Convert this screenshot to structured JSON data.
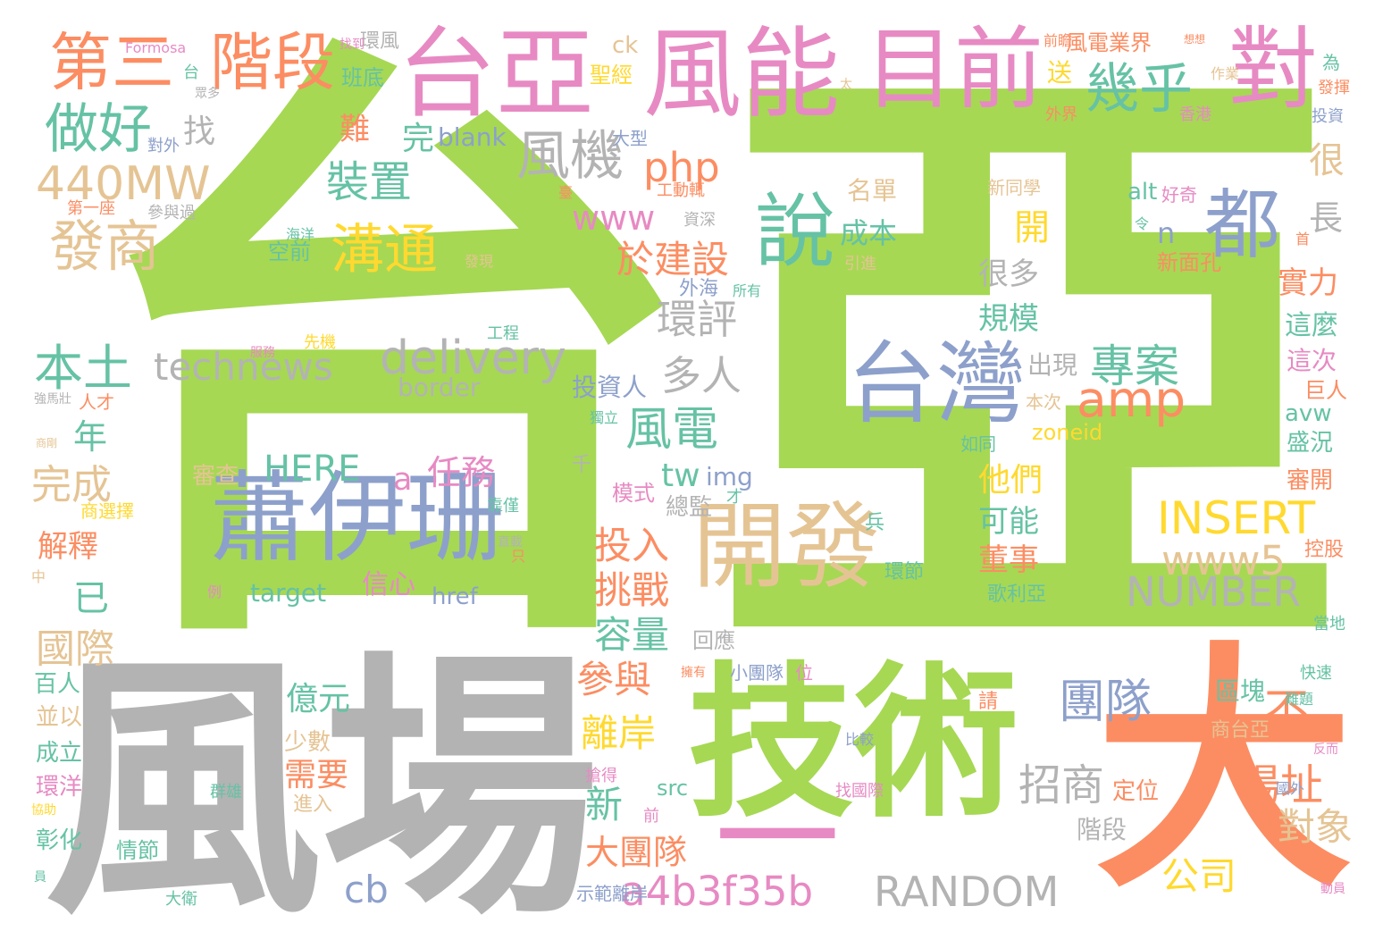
{
  "palette": {
    "green": "#a6d854",
    "pink": "#e78ac3",
    "orange": "#fc8d62",
    "blue": "#8da0cb",
    "tan": "#e5c494",
    "gray": "#b3b3b3",
    "yellow": "#ffd92f",
    "teal": "#66c2a5"
  },
  "words": [
    {
      "text": "台",
      "color": "green"
    },
    {
      "text": "亞",
      "color": "green"
    },
    {
      "text": "風場",
      "color": "gray"
    },
    {
      "text": "技術",
      "color": "green"
    },
    {
      "text": "大",
      "color": "orange"
    },
    {
      "text": "一",
      "color": "pink"
    },
    {
      "text": "台亞",
      "color": "pink"
    },
    {
      "text": "風能",
      "color": "pink"
    },
    {
      "text": "目前",
      "color": "pink"
    },
    {
      "text": "對",
      "color": "pink"
    },
    {
      "text": "蕭伊珊",
      "color": "blue"
    },
    {
      "text": "開發",
      "color": "tan"
    },
    {
      "text": "台灣",
      "color": "blue"
    },
    {
      "text": "說",
      "color": "teal"
    },
    {
      "text": "都",
      "color": "blue"
    },
    {
      "text": "第三",
      "color": "orange"
    },
    {
      "text": "階段",
      "color": "orange"
    },
    {
      "text": "幾乎",
      "color": "teal"
    },
    {
      "text": "做好",
      "color": "teal"
    },
    {
      "text": "風機",
      "color": "gray"
    },
    {
      "text": "440MW",
      "color": "tan"
    },
    {
      "text": "發商",
      "color": "tan"
    },
    {
      "text": "溝通",
      "color": "yellow"
    },
    {
      "text": "technews",
      "color": "gray"
    },
    {
      "text": "delivery",
      "color": "gray"
    },
    {
      "text": "border",
      "color": "gray"
    },
    {
      "text": "本土",
      "color": "teal"
    },
    {
      "text": "專案",
      "color": "teal"
    },
    {
      "text": "amp",
      "color": "orange"
    },
    {
      "text": "INSERT",
      "color": "yellow"
    },
    {
      "text": "www5",
      "color": "tan"
    },
    {
      "text": "NUMBER",
      "color": "gray"
    },
    {
      "text": "RANDOM",
      "color": "gray"
    },
    {
      "text": "a4b3f35b",
      "color": "pink"
    },
    {
      "text": "cb",
      "color": "blue"
    },
    {
      "text": "團隊",
      "color": "blue"
    },
    {
      "text": "不",
      "color": "orange"
    },
    {
      "text": "場址",
      "color": "orange"
    },
    {
      "text": "招商",
      "color": "gray"
    },
    {
      "text": "對象",
      "color": "tan"
    },
    {
      "text": "公司",
      "color": "yellow"
    },
    {
      "text": "風電",
      "color": "teal"
    },
    {
      "text": "裝置",
      "color": "teal"
    },
    {
      "text": "php",
      "color": "orange"
    },
    {
      "text": "www",
      "color": "pink"
    },
    {
      "text": "於建設",
      "color": "orange"
    },
    {
      "text": "環評",
      "color": "gray"
    },
    {
      "text": "多人",
      "color": "gray"
    },
    {
      "text": "HERE",
      "color": "teal"
    },
    {
      "text": "任務",
      "color": "pink"
    },
    {
      "text": "a",
      "color": "pink"
    },
    {
      "text": "tw",
      "color": "teal"
    },
    {
      "text": "img",
      "color": "blue"
    },
    {
      "text": "投入",
      "color": "orange"
    },
    {
      "text": "挑戰",
      "color": "orange"
    },
    {
      "text": "容量",
      "color": "teal"
    },
    {
      "text": "參與",
      "color": "orange"
    },
    {
      "text": "離岸",
      "color": "yellow"
    },
    {
      "text": "新",
      "color": "teal"
    },
    {
      "text": "大團隊",
      "color": "orange"
    },
    {
      "text": "億元",
      "color": "teal"
    },
    {
      "text": "需要",
      "color": "orange"
    },
    {
      "text": "年",
      "color": "teal"
    },
    {
      "text": "完成",
      "color": "tan"
    },
    {
      "text": "解釋",
      "color": "orange"
    },
    {
      "text": "已",
      "color": "teal"
    },
    {
      "text": "國際",
      "color": "tan"
    },
    {
      "text": "開",
      "color": "yellow"
    },
    {
      "text": "n",
      "color": "blue"
    },
    {
      "text": "成本",
      "color": "teal"
    },
    {
      "text": "很多",
      "color": "gray"
    },
    {
      "text": "規模",
      "color": "teal"
    },
    {
      "text": "出現",
      "color": "gray"
    },
    {
      "text": "他們",
      "color": "yellow"
    },
    {
      "text": "可能",
      "color": "teal"
    },
    {
      "text": "董事",
      "color": "orange"
    },
    {
      "text": "很",
      "color": "tan"
    },
    {
      "text": "長",
      "color": "gray"
    },
    {
      "text": "實力",
      "color": "orange"
    },
    {
      "text": "這麼",
      "color": "teal"
    },
    {
      "text": "這次",
      "color": "pink"
    },
    {
      "text": "巨人",
      "color": "orange"
    },
    {
      "text": "avw",
      "color": "teal"
    },
    {
      "text": "盛況",
      "color": "teal"
    },
    {
      "text": "審開",
      "color": "orange"
    },
    {
      "text": "控股",
      "color": "orange"
    },
    {
      "text": "找",
      "color": "gray"
    },
    {
      "text": "難",
      "color": "orange"
    },
    {
      "text": "完",
      "color": "teal"
    },
    {
      "text": "blank",
      "color": "blue"
    },
    {
      "text": "target",
      "color": "teal"
    },
    {
      "text": "信心",
      "color": "pink"
    },
    {
      "text": "href",
      "color": "blue"
    },
    {
      "text": "src",
      "color": "teal"
    },
    {
      "text": "zoneid",
      "color": "yellow"
    },
    {
      "text": "alt",
      "color": "teal"
    },
    {
      "text": "新面孔",
      "color": "orange"
    },
    {
      "text": "名單",
      "color": "tan"
    },
    {
      "text": "新同學",
      "color": "tan"
    },
    {
      "text": "空前",
      "color": "teal"
    },
    {
      "text": "班底",
      "color": "teal"
    },
    {
      "text": "聖經",
      "color": "yellow"
    },
    {
      "text": "ck",
      "color": "tan"
    },
    {
      "text": "送",
      "color": "yellow"
    },
    {
      "text": "風電業界",
      "color": "orange"
    },
    {
      "text": "外界",
      "color": "orange"
    },
    {
      "text": "投資",
      "color": "blue"
    },
    {
      "text": "為",
      "color": "teal"
    },
    {
      "text": "環風",
      "color": "gray"
    },
    {
      "text": "Formosa",
      "color": "pink"
    },
    {
      "text": "台",
      "color": "teal"
    },
    {
      "text": "第一座",
      "color": "orange"
    },
    {
      "text": "參與過",
      "color": "gray"
    },
    {
      "text": "外海",
      "color": "blue"
    },
    {
      "text": "歌利亞",
      "color": "teal"
    },
    {
      "text": "階段",
      "color": "gray"
    },
    {
      "text": "區塊",
      "color": "teal"
    },
    {
      "text": "請",
      "color": "orange"
    },
    {
      "text": "商台亞",
      "color": "tan"
    },
    {
      "text": "本次",
      "color": "tan"
    },
    {
      "text": "如同",
      "color": "teal"
    },
    {
      "text": "投資人",
      "color": "blue"
    },
    {
      "text": "總監",
      "color": "gray"
    },
    {
      "text": "審查",
      "color": "tan"
    },
    {
      "text": "靠僅",
      "color": "teal"
    },
    {
      "text": "百人",
      "color": "teal"
    },
    {
      "text": "並以",
      "color": "tan"
    },
    {
      "text": "成立",
      "color": "teal"
    },
    {
      "text": "環洋",
      "color": "pink"
    },
    {
      "text": "彰化",
      "color": "teal"
    },
    {
      "text": "情節",
      "color": "teal"
    },
    {
      "text": "進入",
      "color": "tan"
    },
    {
      "text": "少數",
      "color": "tan"
    },
    {
      "text": "大衛",
      "color": "teal"
    },
    {
      "text": "示範離岸",
      "color": "blue"
    },
    {
      "text": "搶得",
      "color": "pink"
    },
    {
      "text": "找國際",
      "color": "pink"
    },
    {
      "text": "定位",
      "color": "orange"
    },
    {
      "text": "位",
      "color": "pink"
    },
    {
      "text": "小團隊",
      "color": "blue"
    },
    {
      "text": "回應",
      "color": "gray"
    },
    {
      "text": "兵",
      "color": "teal"
    },
    {
      "text": "環節",
      "color": "teal"
    },
    {
      "text": "才",
      "color": "teal"
    },
    {
      "text": "模式",
      "color": "pink"
    },
    {
      "text": "千",
      "color": "gray"
    },
    {
      "text": "獨立",
      "color": "teal"
    },
    {
      "text": "資深",
      "color": "gray"
    },
    {
      "text": "工動輒",
      "color": "orange"
    },
    {
      "text": "大型",
      "color": "blue"
    },
    {
      "text": "好奇",
      "color": "pink"
    },
    {
      "text": "引進",
      "color": "tan"
    },
    {
      "text": "先機",
      "color": "yellow"
    },
    {
      "text": "人才",
      "color": "orange"
    },
    {
      "text": "強馬壯",
      "color": "gray"
    },
    {
      "text": "發現",
      "color": "tan"
    },
    {
      "text": "海洋",
      "color": "teal"
    },
    {
      "text": "工程",
      "color": "teal"
    },
    {
      "text": "所有",
      "color": "teal"
    },
    {
      "text": "對外",
      "color": "blue"
    },
    {
      "text": "眾多",
      "color": "gray"
    },
    {
      "text": "擁有",
      "color": "orange"
    },
    {
      "text": "比較",
      "color": "blue"
    },
    {
      "text": "難題",
      "color": "teal"
    },
    {
      "text": "快速",
      "color": "teal"
    },
    {
      "text": "當地",
      "color": "teal"
    },
    {
      "text": "反而",
      "color": "pink"
    },
    {
      "text": "國外",
      "color": "blue"
    },
    {
      "text": "動員",
      "color": "pink"
    },
    {
      "text": "香港",
      "color": "pink"
    },
    {
      "text": "發揮",
      "color": "orange"
    },
    {
      "text": "前瞻",
      "color": "orange"
    },
    {
      "text": "想想",
      "color": "orange"
    },
    {
      "text": "作業",
      "color": "tan"
    },
    {
      "text": "令",
      "color": "teal"
    },
    {
      "text": "首",
      "color": "orange"
    },
    {
      "text": "臺",
      "color": "orange"
    },
    {
      "text": "前",
      "color": "pink"
    },
    {
      "text": "群雄",
      "color": "teal"
    },
    {
      "text": "員",
      "color": "teal"
    },
    {
      "text": "協助",
      "color": "yellow"
    },
    {
      "text": "商選擇",
      "color": "yellow"
    },
    {
      "text": "中",
      "color": "tan"
    },
    {
      "text": "商剛",
      "color": "tan"
    },
    {
      "text": "找到",
      "color": "pink"
    },
    {
      "text": "太",
      "color": "tan"
    },
    {
      "text": "只",
      "color": "orange"
    },
    {
      "text": "例",
      "color": "pink"
    },
    {
      "text": "直載",
      "color": "gray"
    },
    {
      "text": "服務",
      "color": "pink"
    },
    {
      "text": "徵",
      "color": "teal"
    }
  ]
}
